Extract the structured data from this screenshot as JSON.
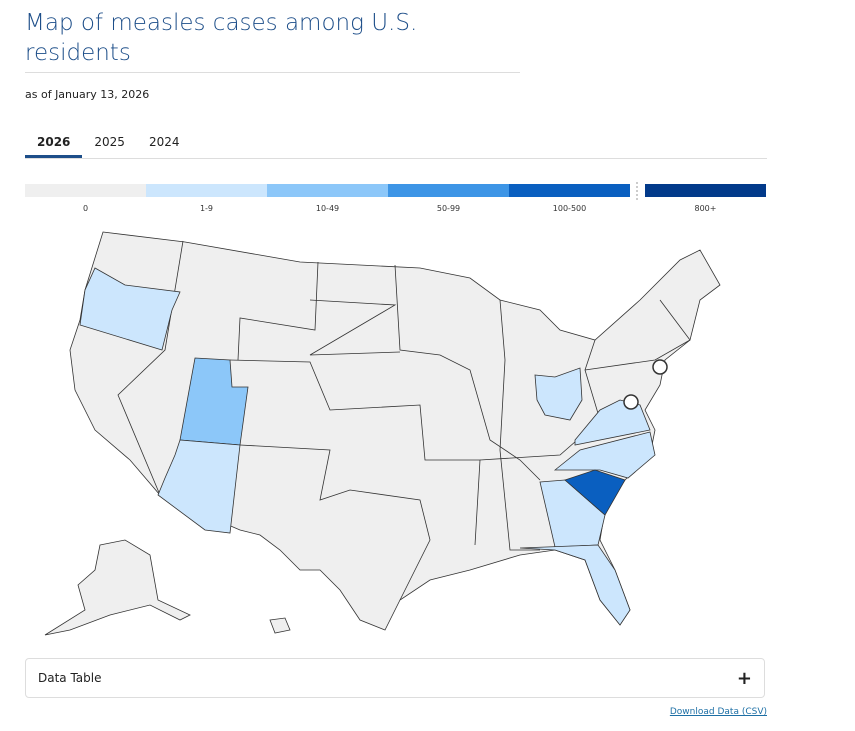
{
  "header": {
    "title": "Map of measles cases among U.S. residents",
    "subtitle": "as of January 13, 2026"
  },
  "tabs": [
    "2026",
    "2025",
    "2024"
  ],
  "active_tab": 0,
  "legend": [
    {
      "label": "0",
      "color": "#efefef"
    },
    {
      "label": "1-9",
      "color": "#cce6fd"
    },
    {
      "label": "10-49",
      "color": "#8cc7f9"
    },
    {
      "label": "50-99",
      "color": "#3d95e6"
    },
    {
      "label": "100-500",
      "color": "#0a5fc0"
    },
    {
      "label": "800+",
      "color": "#023a8a"
    }
  ],
  "data_table": "Data Table",
  "download": "Download Data (CSV)"
}
